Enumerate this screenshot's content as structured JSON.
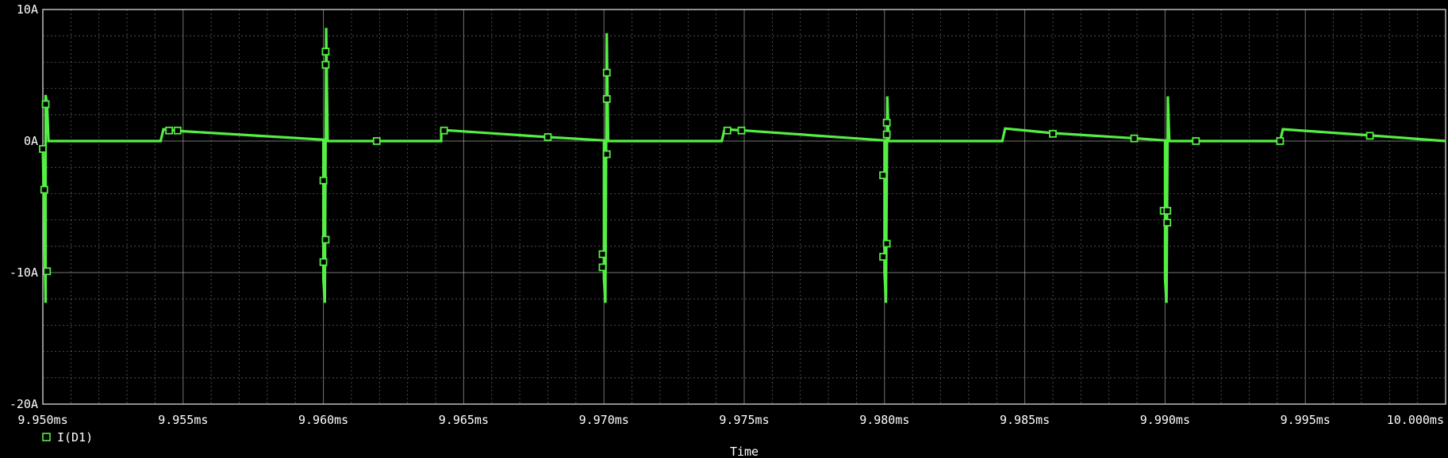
{
  "chart_data": {
    "type": "line",
    "xlabel": "Time",
    "ylabel": "",
    "xlim": [
      9.95,
      10.0
    ],
    "ylim": [
      -20,
      10
    ],
    "x_ticks": [
      9.95,
      9.955,
      9.96,
      9.965,
      9.97,
      9.975,
      9.98,
      9.985,
      9.99,
      9.995,
      10.0
    ],
    "x_tick_labels": [
      "9.950ms",
      "9.955ms",
      "9.960ms",
      "9.965ms",
      "9.970ms",
      "9.975ms",
      "9.980ms",
      "9.985ms",
      "9.990ms",
      "9.995ms",
      "10.000ms"
    ],
    "y_ticks": [
      10,
      0,
      -10,
      -20
    ],
    "y_tick_labels": [
      "10A",
      "0A",
      "-10A",
      "-20A"
    ],
    "grid": true,
    "background": "#000000",
    "grid_color": "#9a9a9a",
    "series_color": "#55ee44",
    "legend_position": "bottom-left",
    "series": [
      {
        "name": "I(D1)",
        "points": [
          [
            9.95,
            -0.5
          ],
          [
            9.9501,
            -12.3
          ],
          [
            9.9501,
            3.5
          ],
          [
            9.95015,
            2.8
          ],
          [
            9.9502,
            0.0
          ],
          [
            9.9542,
            0.0
          ],
          [
            9.9543,
            0.9
          ],
          [
            9.955,
            0.75
          ],
          [
            9.96,
            0.1
          ],
          [
            9.96,
            -10.5
          ],
          [
            9.96005,
            -12.3
          ],
          [
            9.9601,
            8.6
          ],
          [
            9.96015,
            0.0
          ],
          [
            9.9642,
            0.0
          ],
          [
            9.9642,
            0.85
          ],
          [
            9.968,
            0.3
          ],
          [
            9.97,
            0.05
          ],
          [
            9.97,
            -10.5
          ],
          [
            9.97005,
            -12.3
          ],
          [
            9.9701,
            8.2
          ],
          [
            9.97015,
            0.0
          ],
          [
            9.9742,
            0.0
          ],
          [
            9.9743,
            0.9
          ],
          [
            9.975,
            0.8
          ],
          [
            9.98,
            0.05
          ],
          [
            9.98,
            -10.0
          ],
          [
            9.98005,
            -12.3
          ],
          [
            9.9801,
            3.4
          ],
          [
            9.98015,
            0.0
          ],
          [
            9.9842,
            0.0
          ],
          [
            9.9843,
            0.95
          ],
          [
            9.986,
            0.6
          ],
          [
            9.989,
            0.2
          ],
          [
            9.99,
            0.05
          ],
          [
            9.99,
            -10.5
          ],
          [
            9.99005,
            -12.3
          ],
          [
            9.9901,
            3.4
          ],
          [
            9.99015,
            0.0
          ],
          [
            9.9941,
            0.0
          ],
          [
            9.9942,
            0.9
          ],
          [
            9.9975,
            0.4
          ],
          [
            10.0,
            0.0
          ]
        ]
      }
    ],
    "marker_points": [
      [
        9.95,
        -0.6
      ],
      [
        9.95005,
        -3.7
      ],
      [
        9.95015,
        -9.9
      ],
      [
        9.9501,
        2.8
      ],
      [
        9.9545,
        0.8
      ],
      [
        9.9548,
        0.8
      ],
      [
        9.96,
        -3.0
      ],
      [
        9.96,
        -9.2
      ],
      [
        9.96008,
        -7.5
      ],
      [
        9.96008,
        5.8
      ],
      [
        9.96008,
        6.8
      ],
      [
        9.9619,
        0.0
      ],
      [
        9.9643,
        0.8
      ],
      [
        9.968,
        0.3
      ],
      [
        9.96995,
        -9.6
      ],
      [
        9.96995,
        -8.6
      ],
      [
        9.9701,
        -1.0
      ],
      [
        9.9701,
        3.2
      ],
      [
        9.9701,
        5.2
      ],
      [
        9.9744,
        0.8
      ],
      [
        9.9749,
        0.8
      ],
      [
        9.97995,
        -2.6
      ],
      [
        9.97995,
        -8.8
      ],
      [
        9.98008,
        -7.8
      ],
      [
        9.98008,
        0.5
      ],
      [
        9.98008,
        1.4
      ],
      [
        9.986,
        0.55
      ],
      [
        9.9889,
        0.2
      ],
      [
        9.98995,
        -5.3
      ],
      [
        9.99008,
        -5.3
      ],
      [
        9.99008,
        -6.2
      ],
      [
        9.9911,
        0.0
      ],
      [
        9.9941,
        0.0
      ],
      [
        9.9973,
        0.4
      ]
    ]
  }
}
